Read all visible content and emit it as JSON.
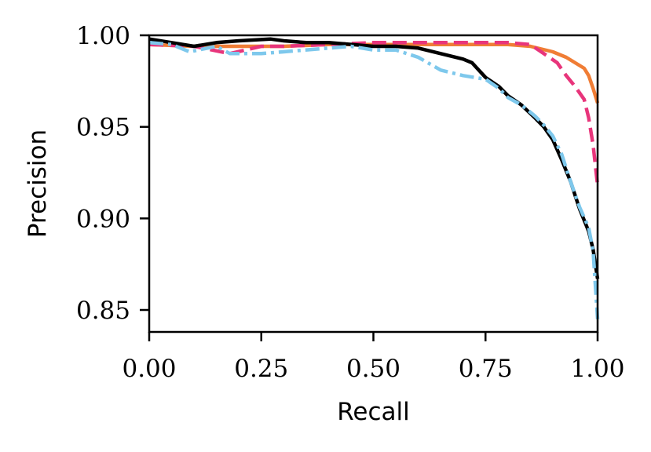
{
  "chart_data": {
    "type": "line",
    "xlabel": "Recall",
    "ylabel": "Precision",
    "xlim": [
      0.0,
      1.0
    ],
    "ylim": [
      0.838,
      1.0
    ],
    "xticks": [
      "0.00",
      "0.25",
      "0.50",
      "0.75",
      "1.00"
    ],
    "yticks": [
      "1.00",
      "0.95",
      "0.90",
      "0.85"
    ],
    "grid": false,
    "series": [
      {
        "color": "#f07d35",
        "style": "solid",
        "x": [
          0.0,
          0.1,
          0.2,
          0.3,
          0.4,
          0.5,
          0.6,
          0.7,
          0.8,
          0.85,
          0.9,
          0.93,
          0.95,
          0.97,
          0.98,
          0.99,
          1.0
        ],
        "y": [
          0.995,
          0.994,
          0.994,
          0.994,
          0.995,
          0.995,
          0.995,
          0.995,
          0.995,
          0.994,
          0.991,
          0.988,
          0.985,
          0.982,
          0.978,
          0.971,
          0.963
        ]
      },
      {
        "color": "#e8357b",
        "style": "dashed",
        "x": [
          0.0,
          0.1,
          0.18,
          0.25,
          0.3,
          0.4,
          0.5,
          0.6,
          0.7,
          0.8,
          0.85,
          0.88,
          0.91,
          0.93,
          0.95,
          0.97,
          0.98,
          0.99,
          1.0
        ],
        "y": [
          0.995,
          0.994,
          0.99,
          0.994,
          0.994,
          0.995,
          0.996,
          0.996,
          0.996,
          0.996,
          0.995,
          0.99,
          0.985,
          0.978,
          0.972,
          0.965,
          0.955,
          0.94,
          0.918
        ]
      },
      {
        "color": "#000000",
        "style": "solid",
        "x": [
          0.0,
          0.05,
          0.1,
          0.15,
          0.2,
          0.27,
          0.3,
          0.35,
          0.4,
          0.5,
          0.55,
          0.6,
          0.65,
          0.7,
          0.72,
          0.75,
          0.78,
          0.8,
          0.83,
          0.86,
          0.88,
          0.9,
          0.92,
          0.94,
          0.96,
          0.98,
          0.99,
          1.0
        ],
        "y": [
          0.998,
          0.996,
          0.994,
          0.996,
          0.997,
          0.998,
          0.997,
          0.996,
          0.996,
          0.994,
          0.994,
          0.993,
          0.99,
          0.987,
          0.985,
          0.977,
          0.972,
          0.967,
          0.962,
          0.955,
          0.95,
          0.943,
          0.932,
          0.92,
          0.905,
          0.893,
          0.883,
          0.867
        ]
      },
      {
        "color": "#7ec8ec",
        "style": "dashdot",
        "x": [
          0.0,
          0.05,
          0.09,
          0.15,
          0.18,
          0.25,
          0.3,
          0.4,
          0.45,
          0.5,
          0.55,
          0.6,
          0.65,
          0.7,
          0.75,
          0.78,
          0.8,
          0.83,
          0.86,
          0.88,
          0.9,
          0.92,
          0.94,
          0.96,
          0.98,
          0.99,
          1.0
        ],
        "y": [
          0.996,
          0.995,
          0.991,
          0.994,
          0.99,
          0.99,
          0.991,
          0.993,
          0.994,
          0.992,
          0.992,
          0.988,
          0.981,
          0.978,
          0.976,
          0.971,
          0.966,
          0.962,
          0.956,
          0.951,
          0.945,
          0.935,
          0.92,
          0.906,
          0.895,
          0.882,
          0.845
        ]
      }
    ]
  }
}
